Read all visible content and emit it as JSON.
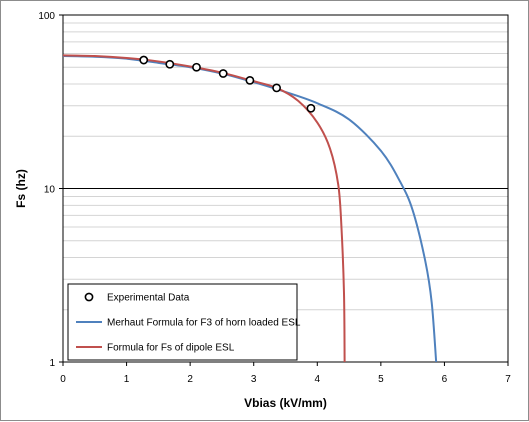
{
  "chart_data": {
    "type": "line",
    "title": "",
    "xlabel": "Vbias (kV/mm)",
    "ylabel": "Fs (hz)",
    "xlim": [
      0,
      7
    ],
    "ylim": [
      1,
      100
    ],
    "y_scale": "log",
    "x_ticks": [
      "0",
      "1",
      "2",
      "3",
      "4",
      "5",
      "6",
      "7"
    ],
    "y_ticks": [
      {
        "value": 1,
        "label": "1"
      },
      {
        "value": 10,
        "label": "10"
      },
      {
        "value": 100,
        "label": "100"
      }
    ],
    "grid": "horizontal, log minor lines",
    "legend_position": "bottom-left",
    "series": [
      {
        "name": "Experimental Data",
        "kind": "scatter",
        "marker": "open-circle",
        "color": "#000000",
        "x": [
          1.27,
          1.68,
          2.1,
          2.52,
          2.94,
          3.36,
          3.9
        ],
        "y": [
          55,
          52,
          50,
          46,
          42,
          38,
          29
        ]
      },
      {
        "name": "Merhaut Formula for F3 of horn loaded ESL",
        "kind": "line",
        "color": "#4f81bd",
        "x": [
          0,
          0.5,
          1.0,
          1.5,
          2.0,
          2.5,
          3.0,
          3.5,
          4.0,
          4.5,
          5.0,
          5.3,
          5.5,
          5.7,
          5.8,
          5.87
        ],
        "y": [
          58,
          57.5,
          56,
          53,
          50,
          46,
          41,
          36,
          31,
          25,
          16.5,
          11,
          7.5,
          3.8,
          2.2,
          1
        ]
      },
      {
        "name": "Formula for Fs of dipole ESL",
        "kind": "line",
        "color": "#c0504d",
        "x": [
          0,
          0.5,
          1.0,
          1.5,
          2.0,
          2.5,
          3.0,
          3.36,
          3.7,
          4.0,
          4.2,
          4.33,
          4.38,
          4.42,
          4.43
        ],
        "y": [
          58.5,
          58,
          56.5,
          54,
          50.5,
          46.5,
          41.5,
          38,
          32,
          24,
          17,
          10.5,
          6,
          2.5,
          1
        ]
      }
    ]
  }
}
